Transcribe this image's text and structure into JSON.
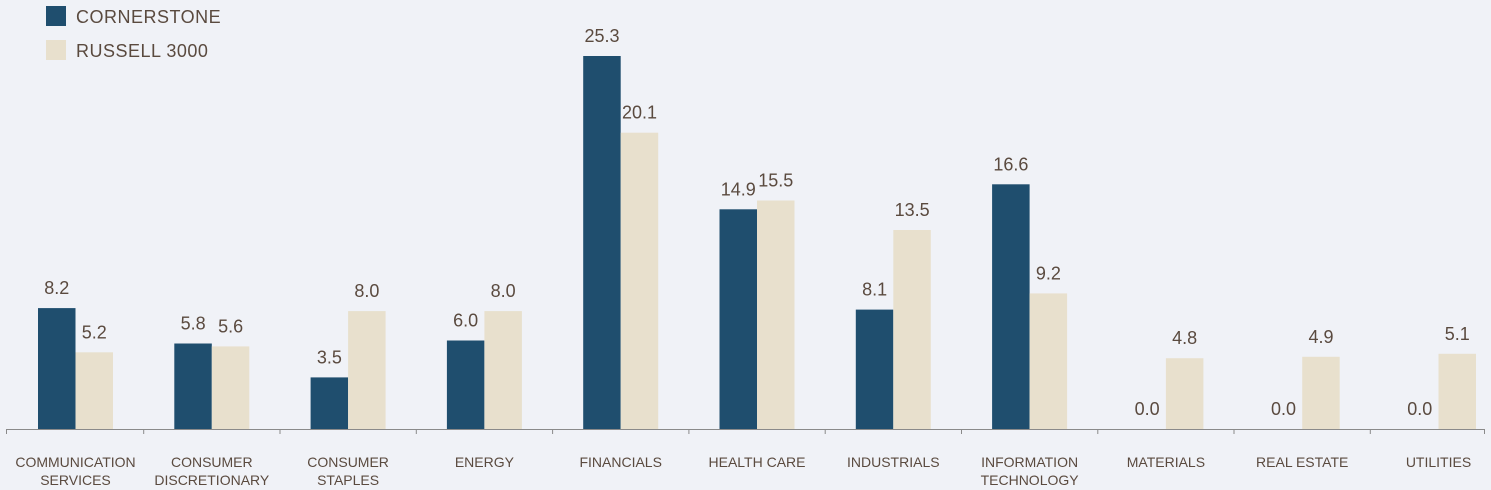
{
  "chart_data": {
    "type": "bar",
    "categories": [
      [
        "COMMUNICATION",
        "SERVICES"
      ],
      [
        "CONSUMER",
        "DISCRETIONARY"
      ],
      [
        "CONSUMER",
        "STAPLES"
      ],
      [
        "ENERGY"
      ],
      [
        "FINANCIALS"
      ],
      [
        "HEALTH CARE"
      ],
      [
        "INDUSTRIALS"
      ],
      [
        "INFORMATION",
        "TECHNOLOGY"
      ],
      [
        "MATERIALS"
      ],
      [
        "REAL ESTATE"
      ],
      [
        "UTILITIES"
      ]
    ],
    "series": [
      {
        "name": "CORNERSTONE",
        "color": "#1f4e6e",
        "values": [
          8.2,
          5.8,
          3.5,
          6.0,
          25.3,
          14.9,
          8.1,
          16.6,
          0.0,
          0.0,
          0.0
        ],
        "labels": [
          "8.2",
          "5.8",
          "3.5",
          "6.0",
          "25.3",
          "14.9",
          "8.1",
          "16.6",
          "0.0",
          "0.0",
          "0.0"
        ]
      },
      {
        "name": "RUSSELL 3000",
        "color": "#e8e0cd",
        "values": [
          5.2,
          5.6,
          8.0,
          8.0,
          20.1,
          15.5,
          13.5,
          9.2,
          4.8,
          4.9,
          5.1
        ],
        "labels": [
          "5.2",
          "5.6",
          "8.0",
          "8.0",
          "20.1",
          "15.5",
          "13.5",
          "9.2",
          "4.8",
          "4.9",
          "5.1"
        ]
      }
    ],
    "legend_position": "top-left",
    "text_color": "#5a4a3f",
    "axis_color": "#8a8a8a",
    "grid": false,
    "title": "",
    "xlabel": "",
    "ylabel": "",
    "ylim": [
      0,
      25.3
    ]
  }
}
